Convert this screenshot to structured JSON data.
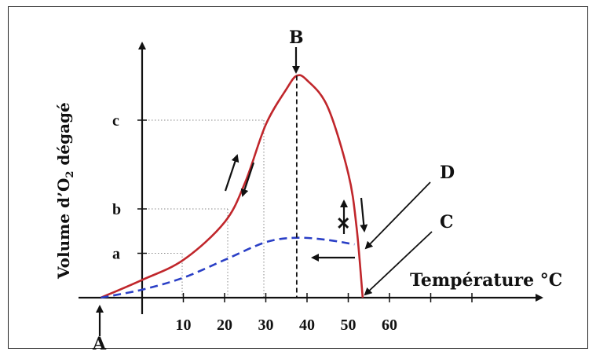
{
  "chart_data": {
    "type": "line",
    "ylabel": "Volume d’O",
    "ylabel_sub": "2",
    "ylabel_suffix": " dégagé",
    "xlabel": "Température °C",
    "x_ticks": [
      "10",
      "20",
      "30",
      "40",
      "50",
      "60"
    ],
    "y_ticks": [
      "a",
      "b",
      "c"
    ],
    "points": {
      "A": "A",
      "B": "B",
      "C": "C",
      "D": "D"
    },
    "reversible_marker": "✕",
    "series": [
      {
        "color": "#c0262b",
        "style": "solid",
        "x": [
          -10,
          0,
          10,
          20,
          25,
          30,
          35,
          37.5,
          40,
          45,
          50,
          52,
          53.5
        ],
        "y": [
          0,
          0.4,
          0.85,
          1.7,
          2.6,
          3.9,
          4.7,
          5.0,
          4.9,
          4.3,
          2.8,
          1.6,
          0
        ]
      },
      {
        "color": "#2a3fc6",
        "style": "dashed",
        "x": [
          -10,
          0,
          10,
          20,
          30,
          37.5,
          45,
          51.5
        ],
        "y": [
          0,
          0.18,
          0.45,
          0.85,
          1.25,
          1.35,
          1.3,
          1.2
        ]
      }
    ]
  }
}
